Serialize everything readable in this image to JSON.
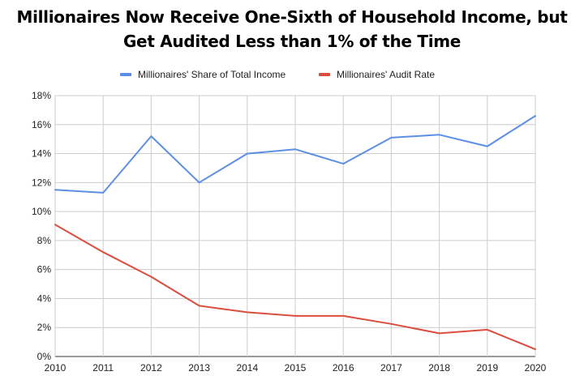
{
  "chart_data": {
    "type": "line",
    "title_lines": [
      "Millionaires Now Receive One-Sixth of Household Income, but",
      "Get Audited Less than 1% of the Time"
    ],
    "x": [
      2010,
      2011,
      2012,
      2013,
      2014,
      2015,
      2016,
      2017,
      2018,
      2019,
      2020
    ],
    "x_tick_labels": [
      "2010",
      "2011",
      "2012",
      "2013",
      "2014",
      "2015",
      "2016",
      "2017",
      "2018",
      "2019",
      "2020"
    ],
    "ylim": [
      0,
      18
    ],
    "y_ticks": [
      0,
      2,
      4,
      6,
      8,
      10,
      12,
      14,
      16,
      18
    ],
    "y_tick_labels": [
      "0%",
      "2%",
      "4%",
      "6%",
      "8%",
      "10%",
      "12%",
      "14%",
      "16%",
      "18%"
    ],
    "grid": true,
    "legend_position": "top",
    "series": [
      {
        "name": "Millionaires' Share of Total Income",
        "color": "#5b8fe6",
        "values": [
          11.5,
          11.3,
          15.2,
          12.0,
          14.0,
          14.3,
          13.3,
          15.1,
          15.3,
          14.5,
          16.6
        ]
      },
      {
        "name": "Millionaires' Audit Rate",
        "color": "#db4d3d",
        "values": [
          9.1,
          7.2,
          5.5,
          3.5,
          3.05,
          2.8,
          2.8,
          2.25,
          1.6,
          1.85,
          0.5
        ]
      }
    ]
  }
}
